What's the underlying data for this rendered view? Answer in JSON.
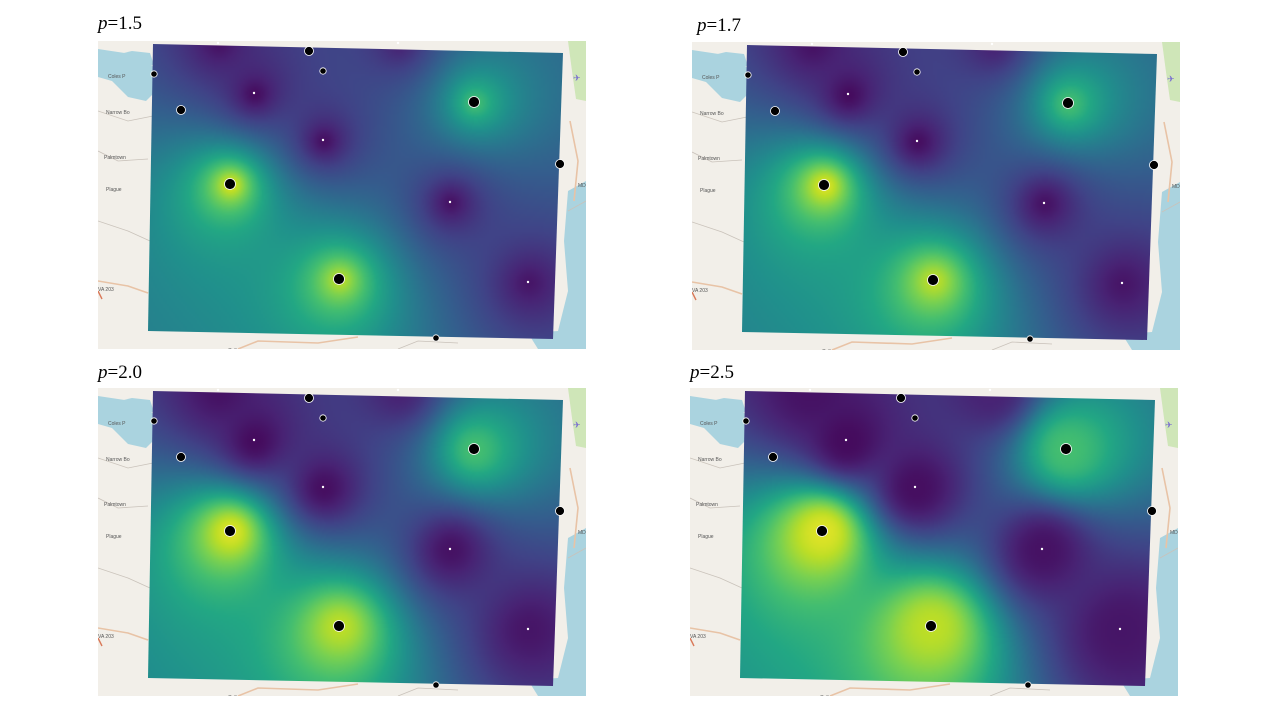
{
  "figure": {
    "panels": [
      {
        "id": "p15",
        "label_var": "p",
        "label_value": "=1.5",
        "p": 1.5,
        "map_labels": [
          "Coles P",
          "Narrow Bo",
          "Palmtown",
          "Plague",
          "VA 203",
          "Callan",
          "MD"
        ]
      },
      {
        "id": "p17",
        "label_var": "p",
        "label_value": "=1.7",
        "p": 1.7,
        "map_labels": [
          "Coles P",
          "Narrow Bo",
          "Palmtown",
          "Plague",
          "VA 203",
          "Callan",
          "MD"
        ]
      },
      {
        "id": "p20",
        "label_var": "p",
        "label_value": "=2.0",
        "p": 2.0,
        "map_labels": [
          "Coles P",
          "Narrow Bo",
          "Palmtown",
          "Plague",
          "VA 203",
          "Callan",
          "MD"
        ]
      },
      {
        "id": "p25",
        "label_var": "p",
        "label_value": "=2.5",
        "p": 2.5,
        "map_labels": [
          "Coles P",
          "Narrow Bo",
          "Palmtown",
          "Plague",
          "VA 203",
          "Callan",
          "MD"
        ]
      }
    ],
    "colormap": "viridis",
    "stations": [
      {
        "id": "s1",
        "value": 0.95,
        "size": "large"
      },
      {
        "id": "s2",
        "value": 0.9,
        "size": "large"
      },
      {
        "id": "s3",
        "value": 0.7,
        "size": "large"
      },
      {
        "id": "s4",
        "value": 0.03,
        "size": "tiny"
      },
      {
        "id": "s5",
        "value": 0.04,
        "size": "tiny"
      },
      {
        "id": "s6",
        "value": 0.05,
        "size": "tiny"
      },
      {
        "id": "s7",
        "value": 0.06,
        "size": "tiny"
      },
      {
        "id": "s8",
        "value": 0.05,
        "size": "tiny"
      },
      {
        "id": "s9",
        "value": 0.1,
        "size": "tiny"
      }
    ],
    "outside_points": [
      {
        "id": "o1",
        "size": "medium"
      },
      {
        "id": "o2",
        "size": "small"
      },
      {
        "id": "o3",
        "size": "small"
      },
      {
        "id": "o4",
        "size": "medium"
      },
      {
        "id": "o5",
        "size": "medium"
      },
      {
        "id": "o6",
        "size": "small"
      }
    ]
  }
}
